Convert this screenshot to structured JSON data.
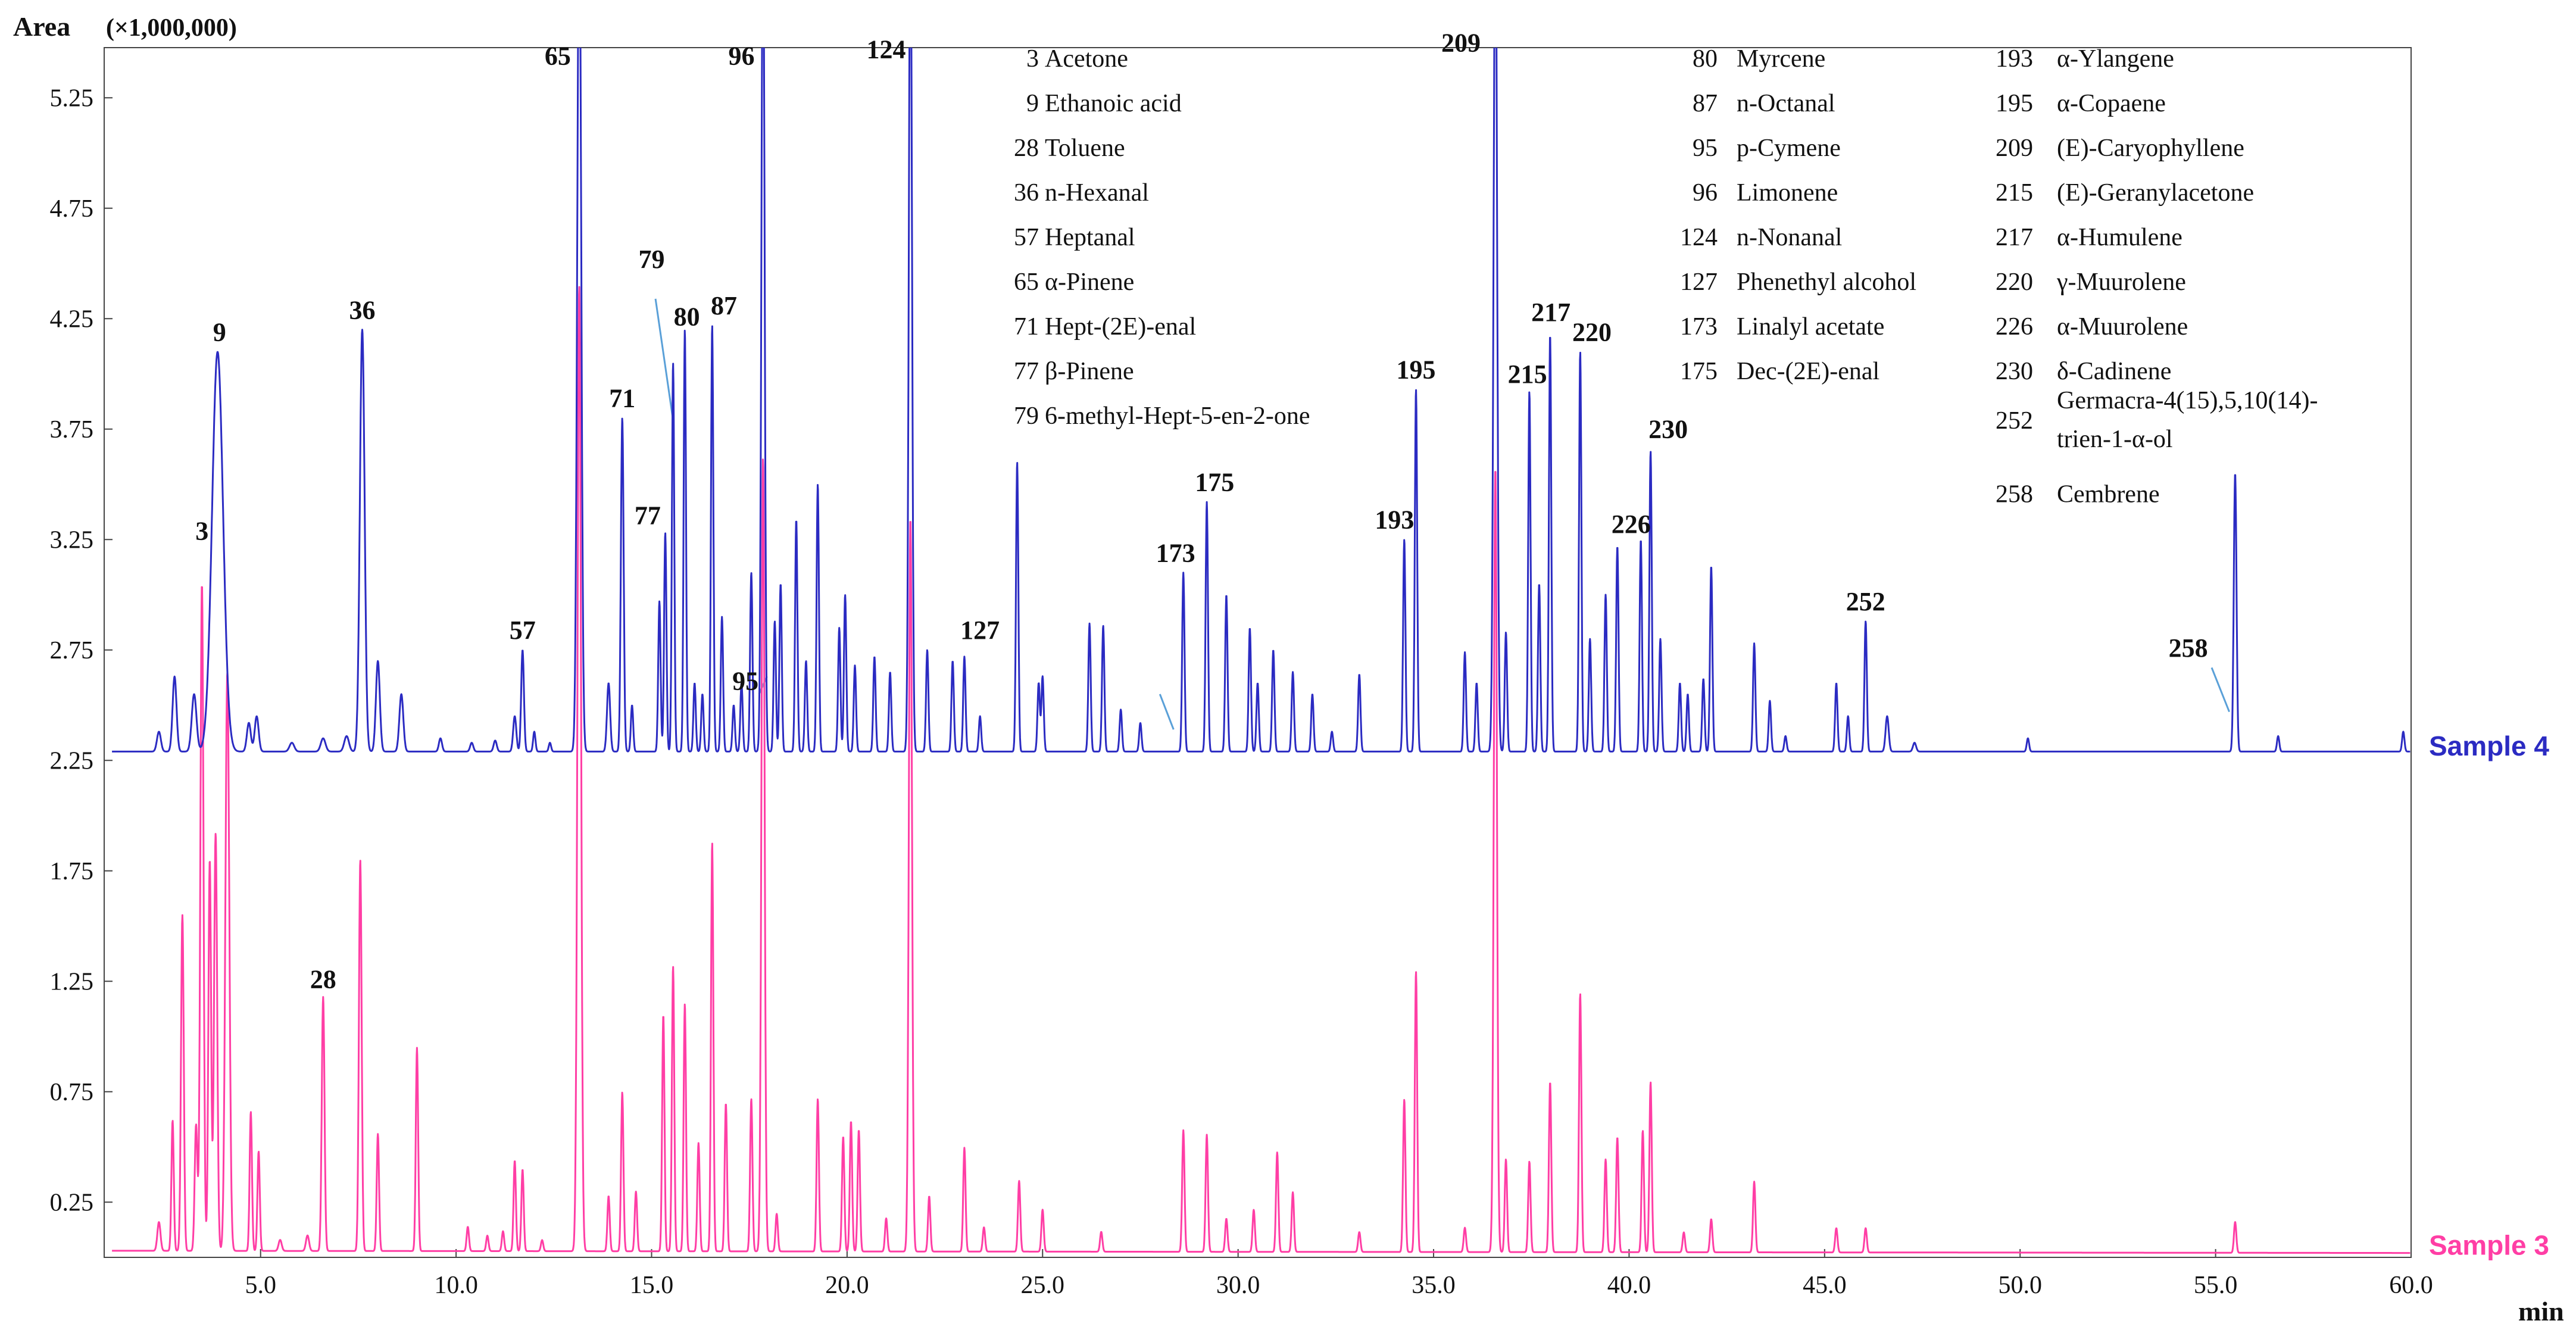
{
  "chart_data": {
    "type": "line",
    "title": "",
    "ylabel": "Area",
    "yunit": "(×1,000,000)",
    "xlabel": "min",
    "xlim": [
      1.0,
      60.0
    ],
    "ylim": [
      0.0,
      5.5
    ],
    "x_ticks": [
      5,
      10,
      15,
      20,
      25,
      30,
      35,
      40,
      45,
      50,
      55,
      60
    ],
    "x_tick_labels": [
      "5.0",
      "10.0",
      "15.0",
      "20.0",
      "25.0",
      "30.0",
      "35.0",
      "40.0",
      "45.0",
      "50.0",
      "55.0",
      "60.0"
    ],
    "y_ticks": [
      0.25,
      0.75,
      1.25,
      1.75,
      2.25,
      2.75,
      3.25,
      3.75,
      4.25,
      4.75,
      5.25
    ],
    "y_tick_labels": [
      "0.25",
      "0.75",
      "1.25",
      "1.75",
      "2.25",
      "2.75",
      "3.25",
      "3.75",
      "4.25",
      "4.75",
      "5.25"
    ],
    "series": [
      {
        "name": "Sample 4",
        "color": "#2b2bc2",
        "baseline": 2.29,
        "baseline_end": 2.29,
        "peaks": [
          [
            2.4,
            2.38,
            0.05
          ],
          [
            2.8,
            2.63,
            0.05
          ],
          [
            3.3,
            2.55,
            0.06
          ],
          [
            3.9,
            4.1,
            0.14
          ],
          [
            4.7,
            2.42,
            0.05
          ],
          [
            4.9,
            2.45,
            0.05
          ],
          [
            5.8,
            2.33,
            0.06
          ],
          [
            6.6,
            2.35,
            0.06
          ],
          [
            7.2,
            2.36,
            0.06
          ],
          [
            7.6,
            4.2,
            0.06
          ],
          [
            8.0,
            2.7,
            0.05
          ],
          [
            8.6,
            2.55,
            0.05
          ],
          [
            9.6,
            2.35,
            0.04
          ],
          [
            10.4,
            2.33,
            0.04
          ],
          [
            11.0,
            2.34,
            0.04
          ],
          [
            11.5,
            2.45,
            0.04
          ],
          [
            11.7,
            2.75,
            0.035
          ],
          [
            12.0,
            2.38,
            0.03
          ],
          [
            12.4,
            2.33,
            0.03
          ],
          [
            13.15,
            6.2,
            0.05
          ],
          [
            13.9,
            2.6,
            0.04
          ],
          [
            14.25,
            3.8,
            0.035
          ],
          [
            14.5,
            2.5,
            0.03
          ],
          [
            15.2,
            2.97,
            0.03
          ],
          [
            15.35,
            3.28,
            0.03
          ],
          [
            15.55,
            4.05,
            0.03
          ],
          [
            15.85,
            4.2,
            0.03
          ],
          [
            16.1,
            2.6,
            0.03
          ],
          [
            16.3,
            2.55,
            0.03
          ],
          [
            16.55,
            4.22,
            0.03
          ],
          [
            16.8,
            2.9,
            0.03
          ],
          [
            17.1,
            2.5,
            0.03
          ],
          [
            17.3,
            2.6,
            0.03
          ],
          [
            17.55,
            3.1,
            0.03
          ],
          [
            17.85,
            6.2,
            0.04
          ],
          [
            18.15,
            2.88,
            0.03
          ],
          [
            18.3,
            3.05,
            0.03
          ],
          [
            18.7,
            3.34,
            0.03
          ],
          [
            18.95,
            2.7,
            0.03
          ],
          [
            19.25,
            3.5,
            0.03
          ],
          [
            19.8,
            2.85,
            0.03
          ],
          [
            19.95,
            3.0,
            0.03
          ],
          [
            20.2,
            2.68,
            0.03
          ],
          [
            20.7,
            2.72,
            0.03
          ],
          [
            21.1,
            2.65,
            0.03
          ],
          [
            21.62,
            6.2,
            0.04
          ],
          [
            22.05,
            2.75,
            0.03
          ],
          [
            22.7,
            2.7,
            0.03
          ],
          [
            23.0,
            2.72,
            0.03
          ],
          [
            23.4,
            2.45,
            0.03
          ],
          [
            24.35,
            3.6,
            0.03
          ],
          [
            24.9,
            2.6,
            0.03
          ],
          [
            25.0,
            2.63,
            0.03
          ],
          [
            26.2,
            2.87,
            0.03
          ],
          [
            26.55,
            2.86,
            0.03
          ],
          [
            27.0,
            2.48,
            0.03
          ],
          [
            27.5,
            2.42,
            0.03
          ],
          [
            28.6,
            3.1,
            0.03
          ],
          [
            29.2,
            3.42,
            0.03
          ],
          [
            29.7,
            3.0,
            0.03
          ],
          [
            30.3,
            2.85,
            0.03
          ],
          [
            30.5,
            2.6,
            0.03
          ],
          [
            30.9,
            2.75,
            0.03
          ],
          [
            31.4,
            2.65,
            0.03
          ],
          [
            31.9,
            2.55,
            0.03
          ],
          [
            32.4,
            2.38,
            0.03
          ],
          [
            33.1,
            2.64,
            0.03
          ],
          [
            34.25,
            3.25,
            0.03
          ],
          [
            34.55,
            3.93,
            0.03
          ],
          [
            35.8,
            2.74,
            0.03
          ],
          [
            36.1,
            2.6,
            0.03
          ],
          [
            36.58,
            6.2,
            0.045
          ],
          [
            36.85,
            2.83,
            0.03
          ],
          [
            37.45,
            3.92,
            0.03
          ],
          [
            37.7,
            3.05,
            0.03
          ],
          [
            37.98,
            4.18,
            0.03
          ],
          [
            38.75,
            4.1,
            0.03
          ],
          [
            39.0,
            2.8,
            0.03
          ],
          [
            39.4,
            3.0,
            0.03
          ],
          [
            39.7,
            3.22,
            0.03
          ],
          [
            40.3,
            3.25,
            0.03
          ],
          [
            40.55,
            3.65,
            0.03
          ],
          [
            40.8,
            2.8,
            0.03
          ],
          [
            41.3,
            2.6,
            0.03
          ],
          [
            41.5,
            2.55,
            0.03
          ],
          [
            41.9,
            2.62,
            0.03
          ],
          [
            42.1,
            3.13,
            0.03
          ],
          [
            43.2,
            2.78,
            0.03
          ],
          [
            43.6,
            2.52,
            0.03
          ],
          [
            44.0,
            2.36,
            0.03
          ],
          [
            45.3,
            2.6,
            0.03
          ],
          [
            45.6,
            2.45,
            0.03
          ],
          [
            46.05,
            2.88,
            0.03
          ],
          [
            46.6,
            2.45,
            0.04
          ],
          [
            47.3,
            2.33,
            0.04
          ],
          [
            50.2,
            2.35,
            0.03
          ],
          [
            55.5,
            3.55,
            0.035
          ],
          [
            56.6,
            2.36,
            0.03
          ],
          [
            59.8,
            2.38,
            0.03
          ]
        ]
      },
      {
        "name": "Sample 3",
        "color": "#ff3ea5",
        "baseline": 0.03,
        "baseline_end": 0.02,
        "peaks": [
          [
            2.4,
            0.16,
            0.04
          ],
          [
            2.75,
            0.62,
            0.03
          ],
          [
            3.0,
            1.55,
            0.035
          ],
          [
            3.35,
            0.6,
            0.035
          ],
          [
            3.5,
            3.05,
            0.04
          ],
          [
            3.7,
            1.8,
            0.035
          ],
          [
            3.85,
            1.92,
            0.04
          ],
          [
            4.15,
            2.65,
            0.05
          ],
          [
            4.75,
            0.66,
            0.03
          ],
          [
            4.95,
            0.48,
            0.03
          ],
          [
            5.5,
            0.08,
            0.04
          ],
          [
            6.2,
            0.1,
            0.04
          ],
          [
            6.6,
            1.18,
            0.035
          ],
          [
            7.55,
            1.8,
            0.035
          ],
          [
            8.0,
            0.56,
            0.03
          ],
          [
            9.0,
            0.95,
            0.03
          ],
          [
            10.3,
            0.14,
            0.03
          ],
          [
            10.8,
            0.1,
            0.03
          ],
          [
            11.2,
            0.12,
            0.03
          ],
          [
            11.5,
            0.44,
            0.03
          ],
          [
            11.7,
            0.4,
            0.03
          ],
          [
            12.2,
            0.08,
            0.03
          ],
          [
            13.15,
            4.4,
            0.045
          ],
          [
            13.9,
            0.28,
            0.03
          ],
          [
            14.25,
            0.75,
            0.03
          ],
          [
            14.6,
            0.3,
            0.03
          ],
          [
            15.3,
            1.1,
            0.03
          ],
          [
            15.55,
            1.32,
            0.03
          ],
          [
            15.85,
            1.15,
            0.03
          ],
          [
            16.2,
            0.52,
            0.03
          ],
          [
            16.55,
            1.88,
            0.03
          ],
          [
            16.9,
            0.7,
            0.03
          ],
          [
            17.55,
            0.72,
            0.03
          ],
          [
            17.85,
            3.62,
            0.04
          ],
          [
            18.2,
            0.2,
            0.03
          ],
          [
            19.25,
            0.72,
            0.03
          ],
          [
            19.9,
            0.55,
            0.03
          ],
          [
            20.1,
            0.62,
            0.03
          ],
          [
            20.3,
            0.58,
            0.03
          ],
          [
            21.0,
            0.18,
            0.03
          ],
          [
            21.62,
            3.35,
            0.04
          ],
          [
            22.1,
            0.28,
            0.03
          ],
          [
            23.0,
            0.5,
            0.03
          ],
          [
            23.5,
            0.14,
            0.03
          ],
          [
            24.4,
            0.35,
            0.03
          ],
          [
            25.0,
            0.22,
            0.03
          ],
          [
            26.5,
            0.12,
            0.03
          ],
          [
            28.6,
            0.58,
            0.03
          ],
          [
            29.2,
            0.56,
            0.03
          ],
          [
            29.7,
            0.18,
            0.03
          ],
          [
            30.4,
            0.22,
            0.03
          ],
          [
            31.0,
            0.48,
            0.03
          ],
          [
            31.4,
            0.3,
            0.03
          ],
          [
            33.1,
            0.12,
            0.03
          ],
          [
            34.25,
            0.72,
            0.03
          ],
          [
            34.55,
            1.3,
            0.03
          ],
          [
            35.8,
            0.14,
            0.03
          ],
          [
            36.58,
            3.58,
            0.04
          ],
          [
            36.85,
            0.45,
            0.03
          ],
          [
            37.45,
            0.44,
            0.03
          ],
          [
            37.98,
            0.8,
            0.03
          ],
          [
            38.75,
            1.2,
            0.03
          ],
          [
            39.4,
            0.45,
            0.03
          ],
          [
            39.7,
            0.55,
            0.03
          ],
          [
            40.35,
            0.58,
            0.03
          ],
          [
            40.55,
            0.8,
            0.03
          ],
          [
            41.4,
            0.12,
            0.03
          ],
          [
            42.1,
            0.18,
            0.03
          ],
          [
            43.2,
            0.35,
            0.03
          ],
          [
            45.3,
            0.14,
            0.03
          ],
          [
            46.05,
            0.14,
            0.03
          ],
          [
            55.5,
            0.17,
            0.03
          ]
        ]
      }
    ],
    "peak_labels": [
      {
        "text": "3",
        "x": 3.5,
        "y": 3.25
      },
      {
        "text": "9",
        "x": 3.95,
        "y": 4.15
      },
      {
        "text": "36",
        "x": 7.6,
        "y": 4.25
      },
      {
        "text": "57",
        "x": 11.7,
        "y": 2.8
      },
      {
        "text": "65",
        "x": 12.6,
        "y": 5.4
      },
      {
        "text": "71",
        "x": 14.25,
        "y": 3.85
      },
      {
        "text": "77",
        "x": 14.9,
        "y": 3.32
      },
      {
        "text": "79",
        "x": 15.0,
        "y": 4.48
      },
      {
        "text": "80",
        "x": 15.9,
        "y": 4.22
      },
      {
        "text": "87",
        "x": 16.85,
        "y": 4.27
      },
      {
        "text": "95",
        "x": 17.4,
        "y": 2.57
      },
      {
        "text": "96",
        "x": 17.3,
        "y": 5.4
      },
      {
        "text": "124",
        "x": 21.0,
        "y": 5.43
      },
      {
        "text": "127",
        "x": 23.4,
        "y": 2.8
      },
      {
        "text": "173",
        "x": 28.4,
        "y": 3.15
      },
      {
        "text": "175",
        "x": 29.4,
        "y": 3.47
      },
      {
        "text": "193",
        "x": 34.0,
        "y": 3.3
      },
      {
        "text": "195",
        "x": 34.55,
        "y": 3.98
      },
      {
        "text": "209",
        "x": 35.7,
        "y": 5.46
      },
      {
        "text": "215",
        "x": 37.4,
        "y": 3.96
      },
      {
        "text": "217",
        "x": 38.0,
        "y": 4.24
      },
      {
        "text": "220",
        "x": 39.05,
        "y": 4.15
      },
      {
        "text": "226",
        "x": 40.05,
        "y": 3.28
      },
      {
        "text": "230",
        "x": 41.0,
        "y": 3.71
      },
      {
        "text": "252",
        "x": 46.05,
        "y": 2.93
      },
      {
        "text": "258",
        "x": 54.3,
        "y": 2.72
      },
      {
        "text": "28",
        "x": 6.6,
        "y": 1.22
      }
    ],
    "leader_lines": [
      [
        15.1,
        4.34,
        15.55,
        3.79
      ],
      [
        17.75,
        2.55,
        17.95,
        2.63
      ],
      [
        28.0,
        2.55,
        28.35,
        2.39
      ],
      [
        54.9,
        2.67,
        55.35,
        2.47
      ]
    ],
    "legend": [
      {
        "num": "3",
        "name": "Acetone"
      },
      {
        "num": "9",
        "name": "Ethanoic acid"
      },
      {
        "num": "28",
        "name": "Toluene"
      },
      {
        "num": "36",
        "name": "n-Hexanal"
      },
      {
        "num": "57",
        "name": "Heptanal"
      },
      {
        "num": "65",
        "name": "α-Pinene"
      },
      {
        "num": "71",
        "name": "Hept-(2E)-enal"
      },
      {
        "num": "77",
        "name": "β-Pinene"
      },
      {
        "num": "79",
        "name": "6-methyl-Hept-5-en-2-one"
      },
      {
        "num": "80",
        "name": "Myrcene"
      },
      {
        "num": "87",
        "name": "n-Octanal"
      },
      {
        "num": "95",
        "name": "p-Cymene"
      },
      {
        "num": "96",
        "name": "Limonene"
      },
      {
        "num": "124",
        "name": "n-Nonanal"
      },
      {
        "num": "127",
        "name": "Phenethyl alcohol"
      },
      {
        "num": "173",
        "name": "Linalyl acetate"
      },
      {
        "num": "175",
        "name": "Dec-(2E)-enal"
      },
      {
        "num": "193",
        "name": "α-Ylangene"
      },
      {
        "num": "195",
        "name": "α-Copaene"
      },
      {
        "num": "209",
        "name": "(E)-Caryophyllene"
      },
      {
        "num": "215",
        "name": "(E)-Geranylacetone"
      },
      {
        "num": "217",
        "name": "α-Humulene"
      },
      {
        "num": "220",
        "name": "γ-Muurolene"
      },
      {
        "num": "226",
        "name": "α-Muurolene"
      },
      {
        "num": "230",
        "name": "δ-Cadinene"
      },
      {
        "num": "252",
        "name": "Germacra-4(15),5,10(14)-trien-1-α-ol"
      },
      {
        "num": "258",
        "name": "Cembrene"
      }
    ]
  }
}
